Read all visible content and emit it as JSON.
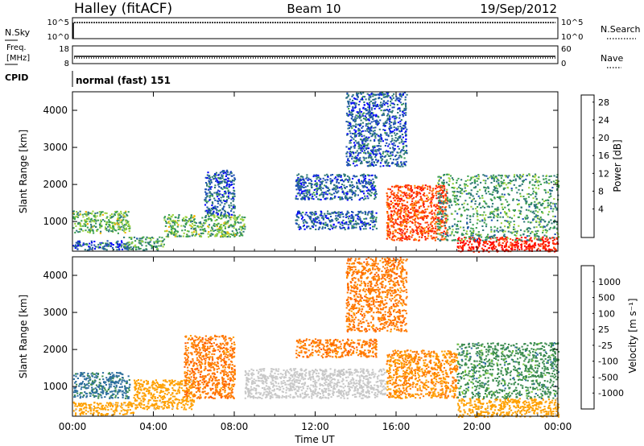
{
  "header": {
    "station": "Halley (fitACF)",
    "beam": "Beam 10",
    "date": "19/Sep/2012"
  },
  "summary_panels": {
    "nsky_label": "N.Sky",
    "nsky_ticks": [
      "10^5",
      "10^0"
    ],
    "nsearch_label": "N.Search",
    "nsearch_ticks": [
      "10^5",
      "10^0"
    ],
    "freq_label_top": "Freq.",
    "freq_label_unit": "[MHz]",
    "freq_ticks": [
      "18",
      "8"
    ],
    "nave_label": "Nave",
    "nave_ticks": [
      "60",
      "0"
    ],
    "cpid_label": "CPID",
    "cpid_text": "normal (fast) 151"
  },
  "colors": {
    "power_scale": [
      "#0000ff",
      "#1e50b4",
      "#2f7878",
      "#3ca050",
      "#9bd23c",
      "#f0b400",
      "#ff8c00",
      "#ff5000",
      "#ff2800",
      "#ff0000"
    ],
    "velocity_scale": [
      "#ff0000",
      "#ff5000",
      "#ff7800",
      "#ffa000",
      "#c8c8c8",
      "#c8c8c8",
      "#78c83c",
      "#3c8c50",
      "#2f6f9f",
      "#1e46c8"
    ]
  },
  "chart_data": [
    {
      "type": "heatmap",
      "name": "power-panel",
      "ylabel": "Slant Range [km]",
      "xlabel": "Time UT",
      "x_ticks": [
        "00:00",
        "04:00",
        "08:00",
        "12:00",
        "16:00",
        "20:00",
        "00:00"
      ],
      "y_ticks": [
        "1000",
        "2000",
        "3000",
        "4000"
      ],
      "ylim": [
        200,
        4500
      ],
      "xlim": [
        0,
        24
      ],
      "colorbar": {
        "label": "Power [dB]",
        "ticks": [
          "4",
          "8",
          "12",
          "16",
          "20",
          "24",
          "28"
        ]
      },
      "features": [
        {
          "x": [
            0.0,
            2.8
          ],
          "range": [
            700,
            1300
          ],
          "value": 12
        },
        {
          "x": [
            0.0,
            2.8
          ],
          "range": [
            250,
            500
          ],
          "value": 6
        },
        {
          "x": [
            2.5,
            4.5
          ],
          "range": [
            250,
            600
          ],
          "value": 10
        },
        {
          "x": [
            4.5,
            8.5
          ],
          "range": [
            600,
            1200
          ],
          "value": 12
        },
        {
          "x": [
            6.5,
            8.0
          ],
          "range": [
            1200,
            2400
          ],
          "value": 6
        },
        {
          "x": [
            11.0,
            15.0
          ],
          "range": [
            800,
            1300
          ],
          "value": 6
        },
        {
          "x": [
            11.0,
            15.0
          ],
          "range": [
            1600,
            2300
          ],
          "value": 6
        },
        {
          "x": [
            13.5,
            16.5
          ],
          "range": [
            2500,
            4500
          ],
          "value": 6
        },
        {
          "x": [
            15.5,
            18.5
          ],
          "range": [
            500,
            2000
          ],
          "value": 24
        },
        {
          "x": [
            19.0,
            24.0
          ],
          "range": [
            200,
            600
          ],
          "value": 28
        },
        {
          "x": [
            18.0,
            24.0
          ],
          "range": [
            500,
            2300
          ],
          "value": 10
        }
      ]
    },
    {
      "type": "heatmap",
      "name": "velocity-panel",
      "ylabel": "Slant Range [km]",
      "xlabel": "Time UT",
      "x_ticks": [
        "00:00",
        "04:00",
        "08:00",
        "12:00",
        "16:00",
        "20:00",
        "00:00"
      ],
      "y_ticks": [
        "1000",
        "2000",
        "3000",
        "4000"
      ],
      "ylim": [
        200,
        4500
      ],
      "xlim": [
        0,
        24
      ],
      "colorbar": {
        "label": "Velocity [m s⁻¹]",
        "ticks": [
          "1000",
          "500",
          "100",
          "25",
          "-25",
          "-100",
          "-500",
          "-1000"
        ]
      },
      "features": [
        {
          "x": [
            0.0,
            2.8
          ],
          "range": [
            700,
            1400
          ],
          "value": 500
        },
        {
          "x": [
            0.0,
            3.0
          ],
          "range": [
            250,
            600
          ],
          "value": -100
        },
        {
          "x": [
            3.0,
            6.0
          ],
          "range": [
            400,
            1200
          ],
          "value": -100
        },
        {
          "x": [
            5.5,
            8.0
          ],
          "range": [
            700,
            2400
          ],
          "value": -300
        },
        {
          "x": [
            8.5,
            15.5
          ],
          "range": [
            700,
            1500
          ],
          "value": 0
        },
        {
          "x": [
            11.0,
            15.0
          ],
          "range": [
            1800,
            2300
          ],
          "value": -300
        },
        {
          "x": [
            13.5,
            16.5
          ],
          "range": [
            2500,
            4500
          ],
          "value": -300
        },
        {
          "x": [
            15.5,
            19.0
          ],
          "range": [
            700,
            2000
          ],
          "value": -200
        },
        {
          "x": [
            19.0,
            24.0
          ],
          "range": [
            200,
            700
          ],
          "value": -100
        },
        {
          "x": [
            19.0,
            24.0
          ],
          "range": [
            700,
            2200
          ],
          "value": 300
        }
      ]
    }
  ]
}
